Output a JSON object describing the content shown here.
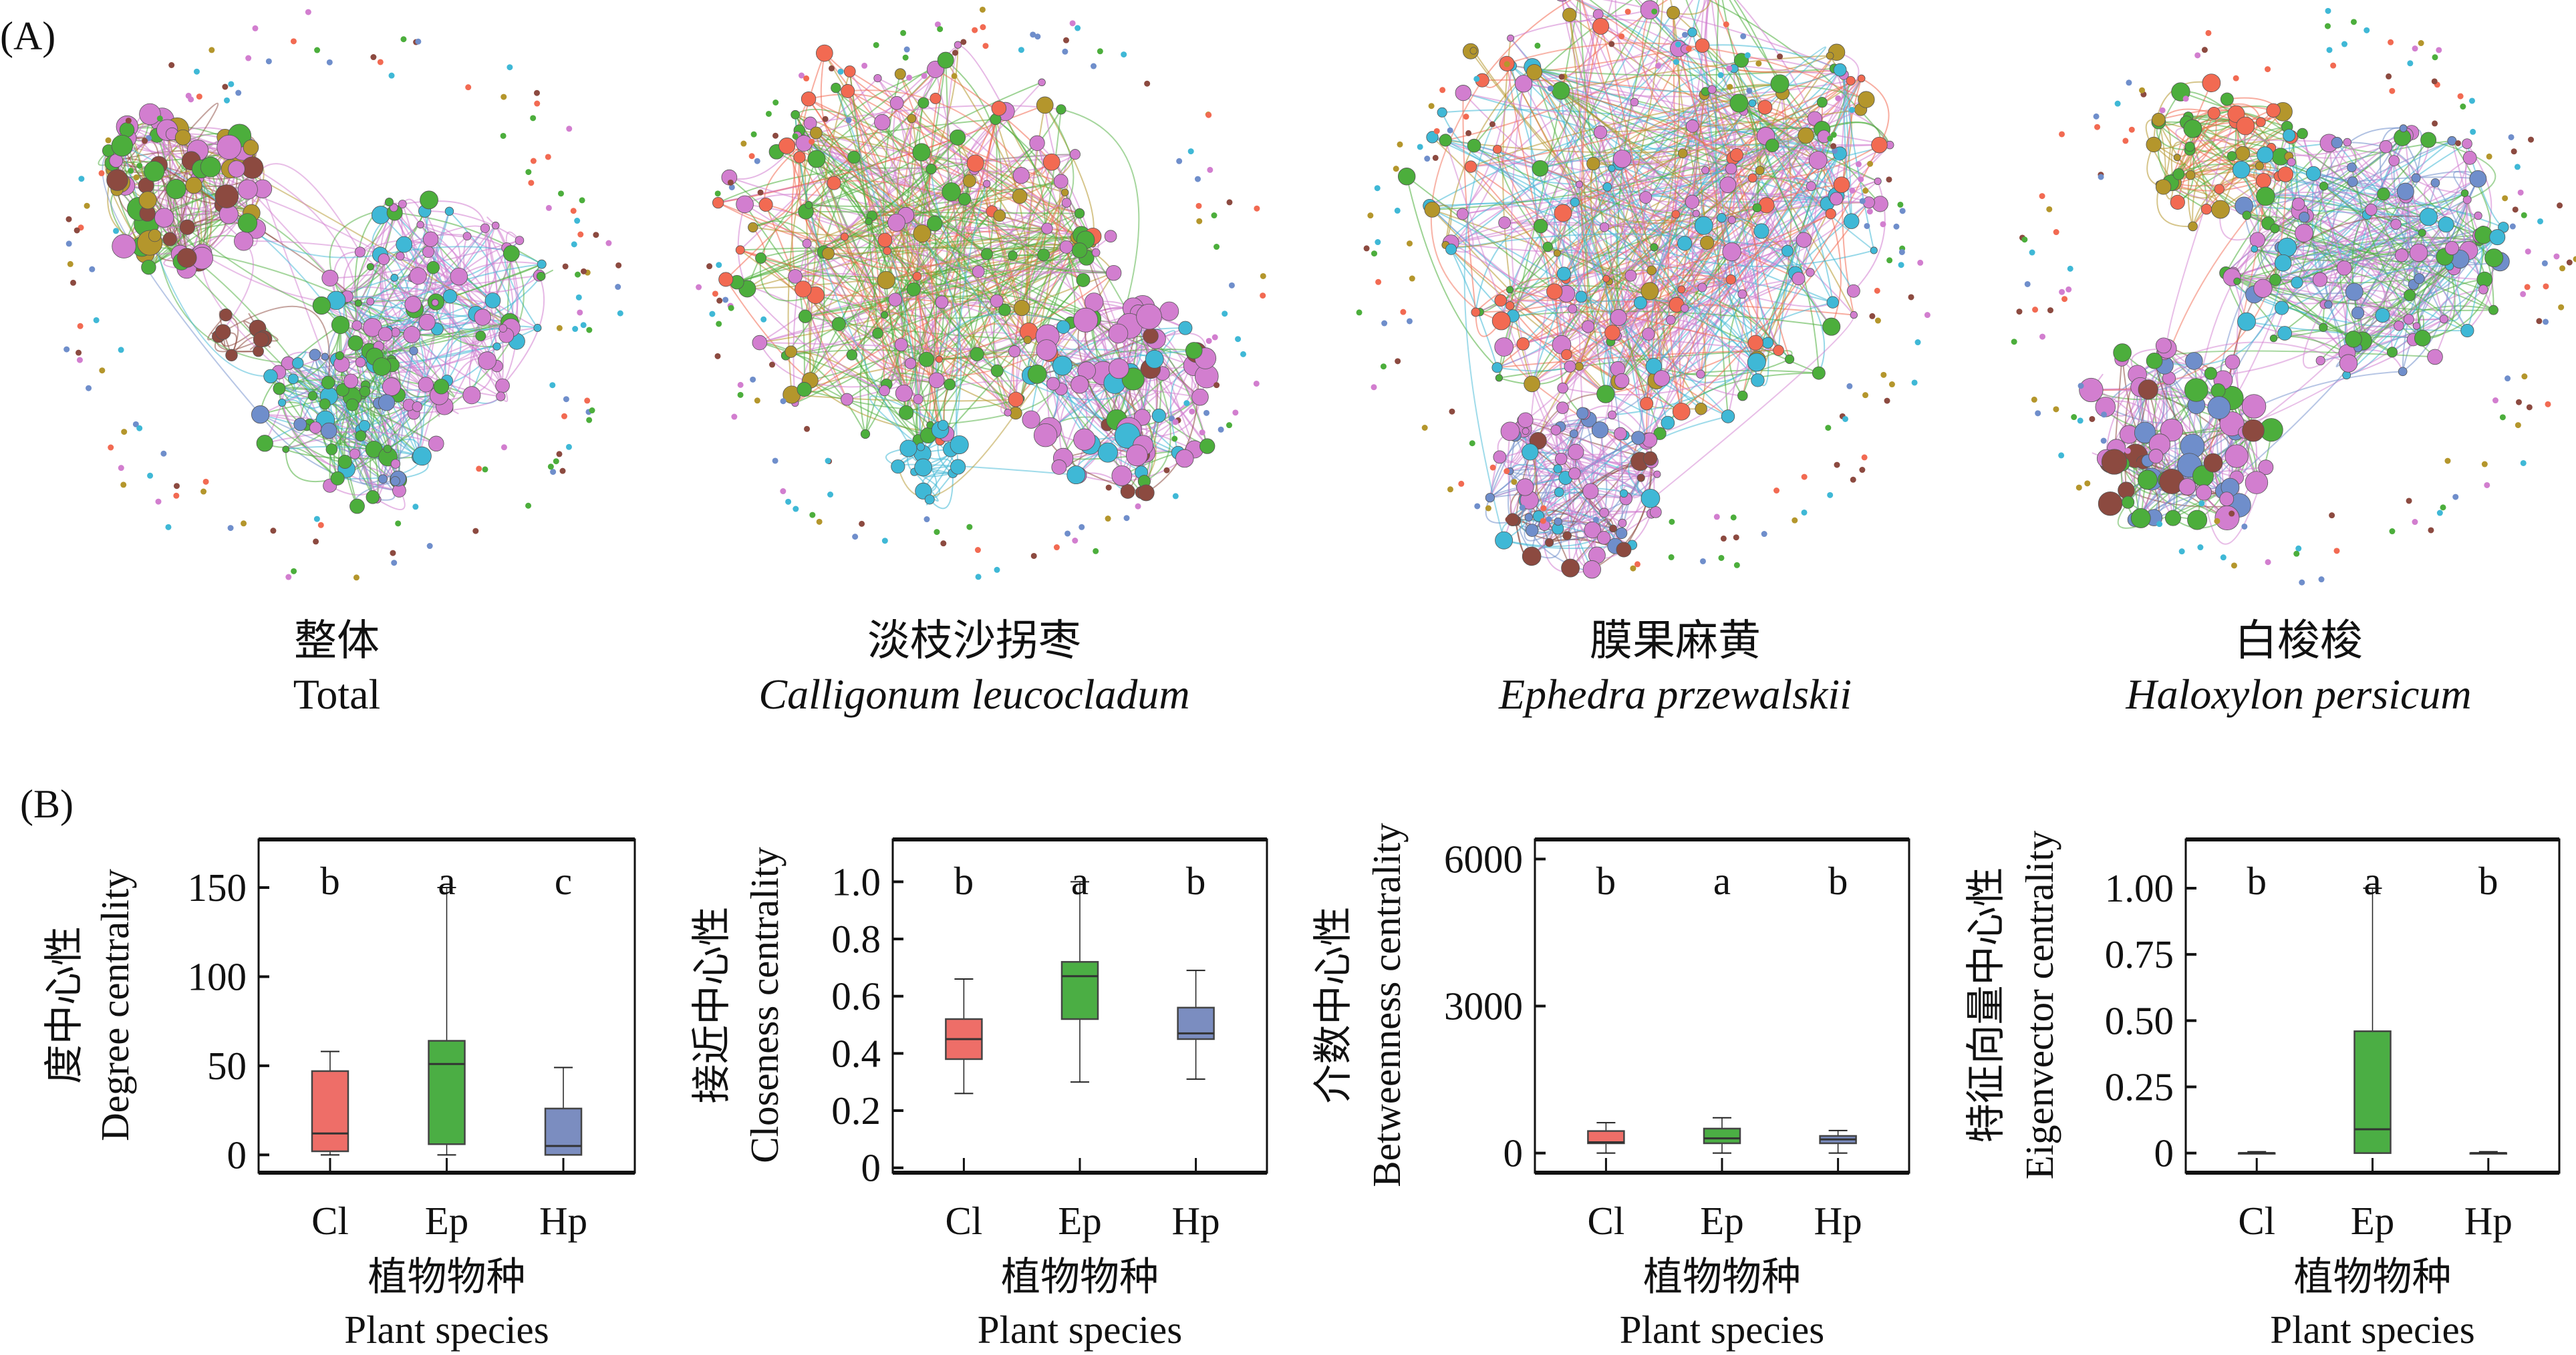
{
  "panel_a_label": "(A)",
  "panel_b_label": "(B)",
  "colors": {
    "pink": "#D27ECF",
    "green": "#4CAE3C",
    "red": "#F26A52",
    "brown": "#8C4A40",
    "cyan": "#3FB8D6",
    "olive": "#B4962C",
    "blue": "#6F8ECB",
    "box_cl": "#EE6E68",
    "box_ep": "#4BAE44",
    "box_hp": "#7B8DC0"
  },
  "networks": [
    {
      "title_zh": "整体",
      "title_en": "Total",
      "italic": false
    },
    {
      "title_zh": "淡枝沙拐枣",
      "title_en": "Calligonum leucocladum",
      "italic": true
    },
    {
      "title_zh": "膜果麻黄",
      "title_en": "Ephedra przewalskii",
      "italic": true
    },
    {
      "title_zh": "白梭梭",
      "title_en": "Haloxylon persicum",
      "italic": true
    }
  ],
  "chart_data": [
    {
      "type": "box",
      "ylabel_zh": "度中心性",
      "ylabel_en": "Degree centrality",
      "xlabel_zh": "植物物种",
      "xlabel_en": "Plant species",
      "categories": [
        "Cl",
        "Ep",
        "Hp"
      ],
      "ylim": [
        -10,
        177
      ],
      "yticks": [
        0,
        50,
        100,
        150
      ],
      "ytick_labels": [
        "0",
        "50",
        "100",
        "150"
      ],
      "letters": [
        "b",
        "a",
        "c"
      ],
      "boxes": [
        {
          "min": 0,
          "q1": 2,
          "median": 12,
          "q3": 47,
          "max": 58
        },
        {
          "min": 0,
          "q1": 6,
          "median": 51,
          "q3": 64,
          "max": 150
        },
        {
          "min": 0,
          "q1": 0,
          "median": 5,
          "q3": 26,
          "max": 49
        }
      ]
    },
    {
      "type": "box",
      "ylabel_zh": "接近中心性",
      "ylabel_en": "Closeness centrality",
      "xlabel_zh": "植物物种",
      "xlabel_en": "Plant species",
      "categories": [
        "Cl",
        "Ep",
        "Hp"
      ],
      "ylim": [
        -0.017,
        1.148
      ],
      "yticks": [
        0,
        0.2,
        0.4,
        0.6,
        0.8,
        1.0
      ],
      "ytick_labels": [
        "0",
        "0.2",
        "0.4",
        "0.6",
        "0.8",
        "1.0"
      ],
      "letters": [
        "b",
        "a",
        "b"
      ],
      "boxes": [
        {
          "min": 0.26,
          "q1": 0.38,
          "median": 0.45,
          "q3": 0.52,
          "max": 0.66
        },
        {
          "min": 0.3,
          "q1": 0.52,
          "median": 0.67,
          "q3": 0.72,
          "max": 1.0
        },
        {
          "min": 0.31,
          "q1": 0.45,
          "median": 0.47,
          "q3": 0.56,
          "max": 0.69
        }
      ]
    },
    {
      "type": "box",
      "ylabel_zh": "介数中心性",
      "ylabel_en": "Betweenness centrality",
      "xlabel_zh": "植物物种",
      "xlabel_en": "Plant species",
      "categories": [
        "Cl",
        "Ep",
        "Hp"
      ],
      "ylim": [
        -400,
        6400
      ],
      "yticks": [
        0,
        3000,
        6000
      ],
      "ytick_labels": [
        "0",
        "3000",
        "6000"
      ],
      "letters": [
        "b",
        "a",
        "b"
      ],
      "boxes": [
        {
          "min": 0,
          "q1": 200,
          "median": 220,
          "q3": 450,
          "max": 620
        },
        {
          "min": 0,
          "q1": 200,
          "median": 300,
          "q3": 500,
          "max": 720
        },
        {
          "min": 0,
          "q1": 200,
          "median": 280,
          "q3": 350,
          "max": 460
        }
      ]
    },
    {
      "type": "box",
      "ylabel_zh": "特征向量中心性",
      "ylabel_en": "Eigenvector centrality",
      "xlabel_zh": "植物物种",
      "xlabel_en": "Plant species",
      "categories": [
        "Cl",
        "Ep",
        "Hp"
      ],
      "ylim": [
        -0.074,
        1.184
      ],
      "yticks": [
        0,
        0.25,
        0.5,
        0.75,
        1.0
      ],
      "ytick_labels": [
        "0",
        "0.25",
        "0.50",
        "0.75",
        "1.00"
      ],
      "letters": [
        "b",
        "a",
        "b"
      ],
      "boxes": [
        {
          "min": 0,
          "q1": 0,
          "median": 0,
          "q3": 0,
          "max": 0.005
        },
        {
          "min": 0,
          "q1": 0,
          "median": 0.09,
          "q3": 0.46,
          "max": 1.0
        },
        {
          "min": 0,
          "q1": 0,
          "median": 0,
          "q3": 0,
          "max": 0.005
        }
      ]
    }
  ]
}
